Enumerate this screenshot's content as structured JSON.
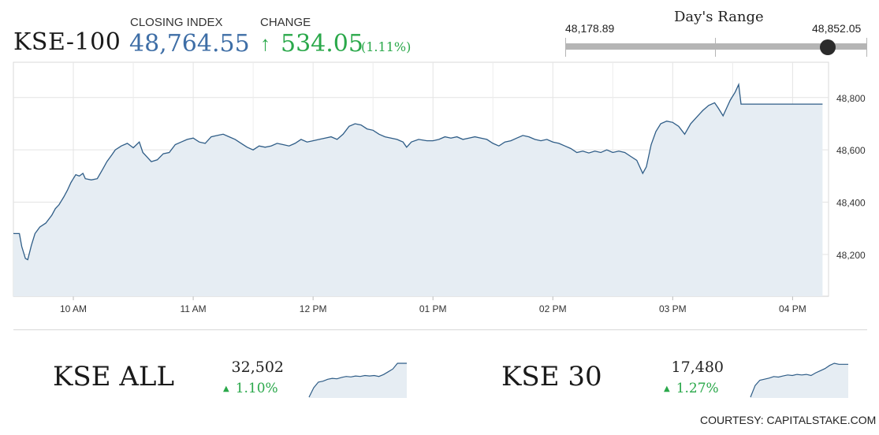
{
  "header": {
    "symbol": "KSE-100",
    "closing_label": "CLOSING INDEX",
    "closing_value": "48,764.55",
    "change_label": "CHANGE",
    "change_arrow": "↑",
    "change_value": "534.05",
    "change_percent": "(1.11%)"
  },
  "days_range": {
    "title": "Day's Range",
    "low": "48,178.89",
    "high": "48,852.05",
    "current_fraction": 0.87
  },
  "colors": {
    "line": "#2f5d87",
    "fill": "#e6edf3",
    "positive": "#2aa84a",
    "accent_blue": "#3e6ea6"
  },
  "chart_data": [
    {
      "type": "area",
      "series_label": "KSE-100",
      "x_tick_labels": [
        "10 AM",
        "11 AM",
        "12 PM",
        "01 PM",
        "02 PM",
        "03 PM",
        "04 PM"
      ],
      "x_hours": [
        10,
        11,
        12,
        13,
        14,
        15,
        16
      ],
      "y_ticks": [
        48200,
        48400,
        48600,
        48800
      ],
      "y_tick_labels": [
        "48,200",
        "48,400",
        "48,600",
        "48,800"
      ],
      "xlim": [
        9.5,
        16.3
      ],
      "ylim": [
        48040,
        48935
      ],
      "grid": true,
      "points": [
        [
          9.5,
          48280
        ],
        [
          9.55,
          48280
        ],
        [
          9.57,
          48230
        ],
        [
          9.6,
          48185
        ],
        [
          9.62,
          48180
        ],
        [
          9.65,
          48235
        ],
        [
          9.68,
          48280
        ],
        [
          9.72,
          48305
        ],
        [
          9.77,
          48320
        ],
        [
          9.82,
          48350
        ],
        [
          9.85,
          48375
        ],
        [
          9.88,
          48390
        ],
        [
          9.92,
          48420
        ],
        [
          9.95,
          48445
        ],
        [
          9.98,
          48475
        ],
        [
          10.0,
          48490
        ],
        [
          10.02,
          48505
        ],
        [
          10.05,
          48500
        ],
        [
          10.08,
          48510
        ],
        [
          10.1,
          48490
        ],
        [
          10.15,
          48485
        ],
        [
          10.2,
          48490
        ],
        [
          10.25,
          48530
        ],
        [
          10.28,
          48555
        ],
        [
          10.32,
          48580
        ],
        [
          10.35,
          48600
        ],
        [
          10.4,
          48615
        ],
        [
          10.45,
          48625
        ],
        [
          10.5,
          48608
        ],
        [
          10.55,
          48630
        ],
        [
          10.58,
          48590
        ],
        [
          10.62,
          48570
        ],
        [
          10.65,
          48555
        ],
        [
          10.7,
          48562
        ],
        [
          10.75,
          48585
        ],
        [
          10.8,
          48590
        ],
        [
          10.85,
          48620
        ],
        [
          10.9,
          48630
        ],
        [
          10.95,
          48640
        ],
        [
          11.0,
          48645
        ],
        [
          11.05,
          48630
        ],
        [
          11.1,
          48625
        ],
        [
          11.15,
          48650
        ],
        [
          11.2,
          48655
        ],
        [
          11.25,
          48660
        ],
        [
          11.3,
          48650
        ],
        [
          11.35,
          48640
        ],
        [
          11.4,
          48625
        ],
        [
          11.45,
          48610
        ],
        [
          11.5,
          48600
        ],
        [
          11.55,
          48615
        ],
        [
          11.6,
          48610
        ],
        [
          11.65,
          48615
        ],
        [
          11.7,
          48625
        ],
        [
          11.75,
          48620
        ],
        [
          11.8,
          48615
        ],
        [
          11.85,
          48625
        ],
        [
          11.9,
          48640
        ],
        [
          11.95,
          48630
        ],
        [
          12.0,
          48635
        ],
        [
          12.05,
          48640
        ],
        [
          12.1,
          48645
        ],
        [
          12.15,
          48650
        ],
        [
          12.2,
          48640
        ],
        [
          12.25,
          48660
        ],
        [
          12.3,
          48690
        ],
        [
          12.35,
          48700
        ],
        [
          12.4,
          48695
        ],
        [
          12.45,
          48680
        ],
        [
          12.5,
          48675
        ],
        [
          12.55,
          48660
        ],
        [
          12.6,
          48650
        ],
        [
          12.65,
          48645
        ],
        [
          12.7,
          48640
        ],
        [
          12.75,
          48630
        ],
        [
          12.78,
          48610
        ],
        [
          12.82,
          48630
        ],
        [
          12.88,
          48640
        ],
        [
          12.95,
          48635
        ],
        [
          13.0,
          48635
        ],
        [
          13.05,
          48640
        ],
        [
          13.1,
          48650
        ],
        [
          13.15,
          48645
        ],
        [
          13.2,
          48650
        ],
        [
          13.25,
          48640
        ],
        [
          13.3,
          48645
        ],
        [
          13.35,
          48650
        ],
        [
          13.4,
          48645
        ],
        [
          13.45,
          48640
        ],
        [
          13.5,
          48625
        ],
        [
          13.55,
          48615
        ],
        [
          13.6,
          48630
        ],
        [
          13.65,
          48635
        ],
        [
          13.7,
          48645
        ],
        [
          13.75,
          48655
        ],
        [
          13.8,
          48650
        ],
        [
          13.85,
          48640
        ],
        [
          13.9,
          48635
        ],
        [
          13.95,
          48640
        ],
        [
          14.0,
          48630
        ],
        [
          14.05,
          48625
        ],
        [
          14.1,
          48615
        ],
        [
          14.15,
          48605
        ],
        [
          14.2,
          48590
        ],
        [
          14.25,
          48595
        ],
        [
          14.3,
          48588
        ],
        [
          14.35,
          48595
        ],
        [
          14.4,
          48590
        ],
        [
          14.45,
          48600
        ],
        [
          14.5,
          48590
        ],
        [
          14.55,
          48595
        ],
        [
          14.6,
          48590
        ],
        [
          14.65,
          48575
        ],
        [
          14.7,
          48560
        ],
        [
          14.75,
          48510
        ],
        [
          14.78,
          48535
        ],
        [
          14.82,
          48620
        ],
        [
          14.86,
          48670
        ],
        [
          14.9,
          48700
        ],
        [
          14.95,
          48710
        ],
        [
          15.0,
          48705
        ],
        [
          15.05,
          48690
        ],
        [
          15.1,
          48660
        ],
        [
          15.15,
          48700
        ],
        [
          15.2,
          48725
        ],
        [
          15.25,
          48750
        ],
        [
          15.3,
          48770
        ],
        [
          15.35,
          48780
        ],
        [
          15.38,
          48760
        ],
        [
          15.42,
          48730
        ],
        [
          15.45,
          48760
        ],
        [
          15.48,
          48790
        ],
        [
          15.52,
          48820
        ],
        [
          15.55,
          48850
        ],
        [
          15.57,
          48775
        ],
        [
          15.8,
          48775
        ],
        [
          16.0,
          48775
        ],
        [
          16.25,
          48775
        ]
      ]
    },
    {
      "type": "area",
      "series_label": "KSE ALL",
      "value": "32,502",
      "change": "1.10%",
      "values": [
        32200,
        32300,
        32360,
        32370,
        32390,
        32400,
        32395,
        32410,
        32420,
        32415,
        32425,
        32420,
        32430,
        32425,
        32430,
        32420,
        32440,
        32470,
        32500,
        32560,
        32560,
        32560
      ]
    },
    {
      "type": "area",
      "series_label": "KSE 30",
      "value": "17,480",
      "change": "1.27%",
      "values": [
        17200,
        17310,
        17360,
        17370,
        17380,
        17395,
        17390,
        17400,
        17410,
        17405,
        17415,
        17410,
        17415,
        17405,
        17430,
        17450,
        17470,
        17500,
        17520,
        17510,
        17510,
        17510
      ]
    }
  ],
  "indices": [
    {
      "name": "KSE ALL",
      "value": "32,502",
      "arrow": "▲",
      "change": "1.10%"
    },
    {
      "name": "KSE 30",
      "value": "17,480",
      "arrow": "▲",
      "change": "1.27%"
    }
  ],
  "footer": {
    "courtesy": "COURTESY: CAPITALSTAKE.COM"
  }
}
